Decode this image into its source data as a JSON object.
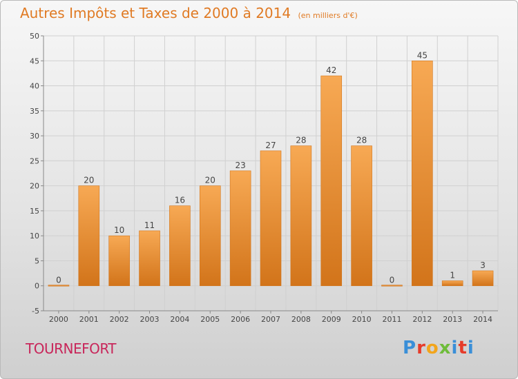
{
  "header": {
    "title": "Autres Impôts et Taxes de 2000 à 2014",
    "subtitle": "(en milliers d'€)"
  },
  "location": "TOURNEFORT",
  "brand": [
    "P",
    "r",
    "o",
    "x",
    "i",
    "t",
    "i"
  ],
  "colors": {
    "bar": "#f2922f",
    "bar_dark": "#d2751b",
    "axis_text": "#444444",
    "grid": "#d0d0d0"
  },
  "chart_data": {
    "type": "bar",
    "categories": [
      "2000",
      "2001",
      "2002",
      "2003",
      "2004",
      "2005",
      "2006",
      "2007",
      "2008",
      "2009",
      "2010",
      "2011",
      "2012",
      "2013",
      "2014"
    ],
    "values": [
      0,
      20,
      10,
      11,
      16,
      20,
      23,
      27,
      28,
      42,
      28,
      0,
      45,
      1,
      3
    ],
    "title": "Autres Impôts et Taxes de 2000 à 2014",
    "subtitle": "(en milliers d'€)",
    "ylim": [
      -5,
      50
    ],
    "yticks": [
      -5,
      0,
      5,
      10,
      15,
      20,
      25,
      30,
      35,
      40,
      45,
      50
    ],
    "grid": true,
    "data_labels": true
  }
}
